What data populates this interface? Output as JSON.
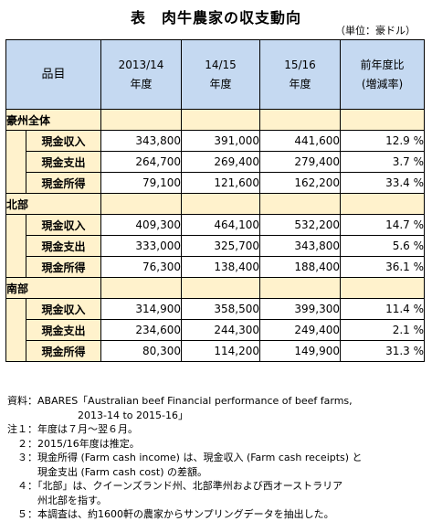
{
  "title": "表　肉牛農家の収支動向",
  "unit": "（単位：豪ドル）",
  "header": {
    "item": "品目",
    "col1_l1": "2013/14",
    "col1_l2": "年度",
    "col2_l1": "14/15",
    "col2_l2": "年度",
    "col3_l1": "15/16",
    "col3_l2": "年度",
    "col4_l1": "前年度比",
    "col4_l2": "(増減率)"
  },
  "sections": [
    {
      "name": "豪州全体",
      "rows": [
        {
          "label": "現金収入",
          "v1": "343,800",
          "v2": "391,000",
          "v3": "441,600",
          "pct": "12.9 %"
        },
        {
          "label": "現金支出",
          "v1": "264,700",
          "v2": "269,400",
          "v3": "279,400",
          "pct": "3.7 %"
        },
        {
          "label": "現金所得",
          "v1": "79,100",
          "v2": "121,600",
          "v3": "162,200",
          "pct": "33.4 %"
        }
      ]
    },
    {
      "name": "北部",
      "rows": [
        {
          "label": "現金収入",
          "v1": "409,300",
          "v2": "464,100",
          "v3": "532,200",
          "pct": "14.7 %"
        },
        {
          "label": "現金支出",
          "v1": "333,000",
          "v2": "325,700",
          "v3": "343,800",
          "pct": "5.6 %"
        },
        {
          "label": "現金所得",
          "v1": "76,300",
          "v2": "138,400",
          "v3": "188,400",
          "pct": "36.1 %"
        }
      ]
    },
    {
      "name": "南部",
      "rows": [
        {
          "label": "現金収入",
          "v1": "314,900",
          "v2": "358,500",
          "v3": "399,300",
          "pct": "11.4 %"
        },
        {
          "label": "現金支出",
          "v1": "234,600",
          "v2": "244,300",
          "v3": "249,400",
          "pct": "2.1 %"
        },
        {
          "label": "現金所得",
          "v1": "80,300",
          "v2": "114,200",
          "v3": "149,900",
          "pct": "31.3 %"
        }
      ]
    }
  ],
  "notes": [
    "資料：ABARES「Australian beef Financial performance of beef farms,",
    "　　　　　　　2013-14 to 2015-16」",
    "注１：年度は７月～翌６月。",
    "　２：2015/16年度は推定。",
    "　３：現金所得 (Farm cash income) は、現金収入 (Farm cash receipts) と",
    "　　　現金支出 (Farm cash cost) の差額。",
    "　４：「北部」は、クイーンズランド州、北部準州および西オーストラリア",
    "　　　州北部を指す。",
    "　５：本調査は、約1600軒の農家からサンプリングデータを抽出した。"
  ]
}
